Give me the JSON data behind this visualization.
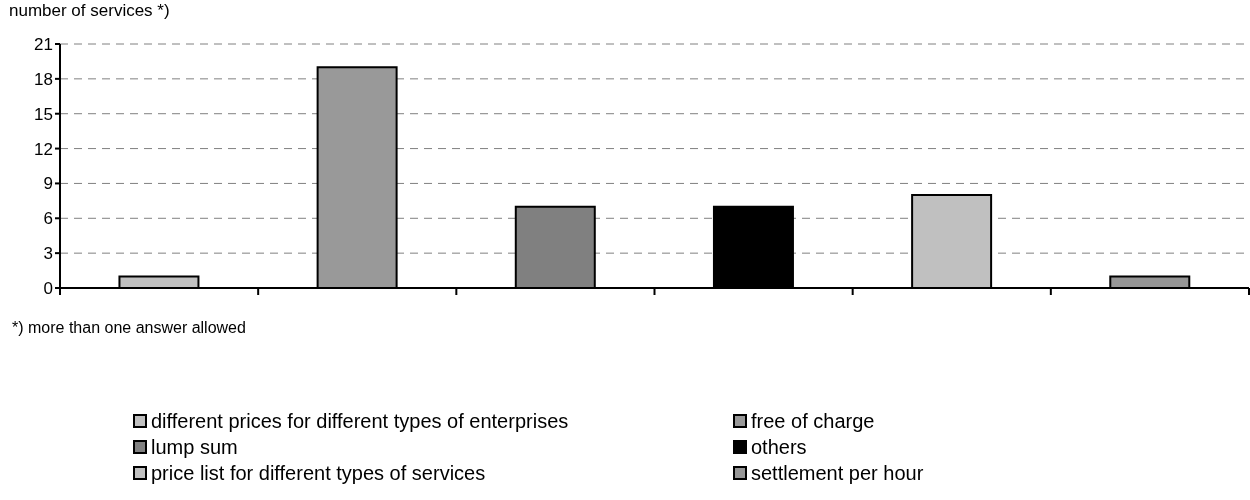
{
  "chart_data": {
    "type": "bar",
    "ylabel": "number of services *)",
    "categories": [
      null,
      null,
      null,
      null,
      null,
      null
    ],
    "series": [
      {
        "name": "different prices for different types of enterprises",
        "color": "#c0c0c0",
        "values": [
          1,
          null,
          null,
          null,
          null,
          null
        ]
      },
      {
        "name": "free of charge",
        "color": "#999999",
        "values": [
          null,
          19,
          null,
          null,
          null,
          null
        ]
      },
      {
        "name": "lump sum",
        "color": "#808080",
        "values": [
          null,
          null,
          7,
          null,
          null,
          null
        ]
      },
      {
        "name": "others",
        "color": "#000000",
        "values": [
          null,
          null,
          null,
          7,
          null,
          null
        ]
      },
      {
        "name": "price list for different types of services",
        "color": "#c0c0c0",
        "values": [
          null,
          null,
          null,
          null,
          8,
          null
        ]
      },
      {
        "name": "settlement per hour",
        "color": "#969696",
        "values": [
          null,
          null,
          null,
          null,
          null,
          1
        ]
      }
    ],
    "ylim": [
      0,
      21
    ],
    "yticks": [
      0,
      3,
      6,
      9,
      12,
      15,
      18,
      21
    ],
    "grid": "y",
    "legend": "bottom",
    "annotations": [
      "*) more than one answer allowed"
    ]
  }
}
